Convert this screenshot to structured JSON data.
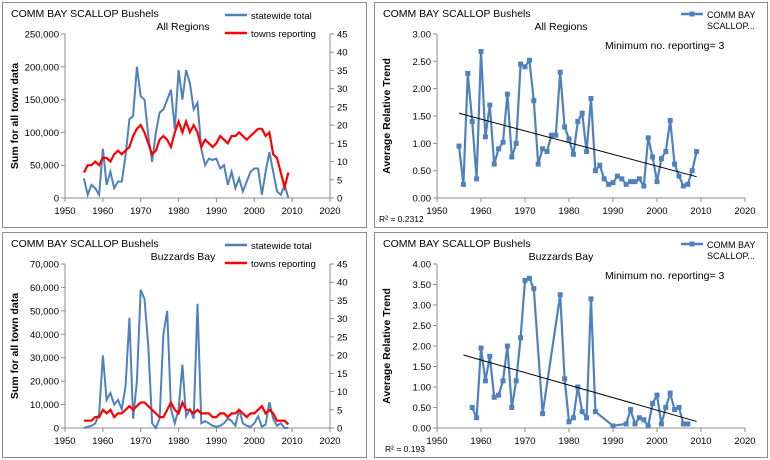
{
  "chart_data": [
    {
      "type": "line",
      "header": "COMM BAY SCALLOP Bushels",
      "title": "All Regions",
      "ylabel": "Sum for all town data",
      "xlim": [
        1950,
        2020
      ],
      "xticks": [
        "1950",
        "1960",
        "1970",
        "1980",
        "1990",
        "2000",
        "2010",
        "2020"
      ],
      "ylim": [
        0,
        250000
      ],
      "yticks": [
        "0",
        "50,000",
        "100,000",
        "150,000",
        "200,000",
        "250,000"
      ],
      "y2lim": [
        0,
        45
      ],
      "y2ticks": [
        "0",
        "5",
        "10",
        "15",
        "20",
        "25",
        "30",
        "35",
        "40",
        "45"
      ],
      "legend": [
        "statewide total",
        "towns reporting"
      ],
      "colors": {
        "total": "#4f81bd",
        "towns": "#ff0000"
      },
      "series": [
        {
          "name": "statewide total",
          "axis": "left",
          "x": [
            1955,
            1956,
            1957,
            1958,
            1959,
            1960,
            1961,
            1962,
            1963,
            1964,
            1965,
            1966,
            1967,
            1968,
            1969,
            1970,
            1971,
            1972,
            1973,
            1974,
            1975,
            1976,
            1977,
            1978,
            1979,
            1980,
            1981,
            1982,
            1983,
            1984,
            1985,
            1986,
            1987,
            1988,
            1989,
            1990,
            1991,
            1992,
            1993,
            1994,
            1995,
            1996,
            1997,
            1998,
            1999,
            2000,
            2001,
            2002,
            2003,
            2004,
            2005,
            2006,
            2007,
            2008,
            2009
          ],
          "values": [
            30000,
            5000,
            20000,
            15000,
            5000,
            75000,
            20000,
            40000,
            15000,
            25000,
            25000,
            65000,
            120000,
            125000,
            200000,
            155000,
            150000,
            95000,
            55000,
            100000,
            130000,
            135000,
            150000,
            165000,
            105000,
            195000,
            150000,
            195000,
            175000,
            135000,
            145000,
            75000,
            50000,
            60000,
            58000,
            60000,
            45000,
            50000,
            20000,
            40000,
            15000,
            30000,
            10000,
            25000,
            40000,
            45000,
            45000,
            5000,
            40000,
            70000,
            40000,
            10000,
            5000,
            20000,
            0
          ]
        },
        {
          "name": "towns reporting",
          "axis": "right",
          "x": [
            1955,
            1956,
            1957,
            1958,
            1959,
            1960,
            1961,
            1962,
            1963,
            1964,
            1965,
            1966,
            1967,
            1968,
            1969,
            1970,
            1971,
            1972,
            1973,
            1974,
            1975,
            1976,
            1977,
            1978,
            1979,
            1980,
            1981,
            1982,
            1983,
            1984,
            1985,
            1986,
            1987,
            1988,
            1989,
            1990,
            1991,
            1992,
            1993,
            1994,
            1995,
            1996,
            1997,
            1998,
            1999,
            2000,
            2001,
            2002,
            2003,
            2004,
            2005,
            2006,
            2007,
            2008,
            2009
          ],
          "values": [
            7,
            9,
            9,
            10,
            9,
            11,
            11,
            10,
            12,
            13,
            12,
            13,
            14,
            17,
            19,
            20,
            18,
            15,
            12,
            13,
            16,
            17,
            16,
            14,
            18,
            21,
            18,
            21,
            18,
            20,
            18,
            14,
            16,
            15,
            14,
            15,
            17,
            16,
            15,
            17,
            17,
            18,
            17,
            16,
            17,
            18,
            19,
            19,
            17,
            18,
            12,
            11,
            7,
            3,
            7
          ]
        }
      ]
    },
    {
      "type": "line",
      "header": "COMM BAY SCALLOP Bushels",
      "title": "All Regions",
      "ylabel": "Average Relative Trend",
      "annotation": "Minimum no. reporting= 3",
      "r2": "R² = 0.2312",
      "xlim": [
        1950,
        2020
      ],
      "xticks": [
        "1950",
        "1960",
        "1970",
        "1980",
        "1990",
        "2000",
        "2010",
        "2020"
      ],
      "ylim": [
        0,
        3
      ],
      "yticks": [
        "0.00",
        "0.50",
        "1.00",
        "1.50",
        "2.00",
        "2.50",
        "3.00"
      ],
      "legend": [
        "COMM BAY",
        "SCALLOP..."
      ],
      "colors": {
        "series": "#4f81bd",
        "trend": "#000000"
      },
      "trend": {
        "x": [
          1955,
          2009
        ],
        "values": [
          1.55,
          0.39
        ]
      },
      "series": [
        {
          "name": "COMM BAY SCALLOP...",
          "x": [
            1955,
            1956,
            1957,
            1958,
            1959,
            1960,
            1961,
            1962,
            1963,
            1964,
            1965,
            1966,
            1967,
            1968,
            1969,
            1970,
            1971,
            1972,
            1973,
            1974,
            1975,
            1976,
            1977,
            1978,
            1979,
            1980,
            1981,
            1982,
            1983,
            1984,
            1985,
            1986,
            1987,
            1988,
            1989,
            1990,
            1991,
            1992,
            1993,
            1994,
            1995,
            1996,
            1997,
            1998,
            1999,
            2000,
            2001,
            2002,
            2003,
            2004,
            2005,
            2006,
            2007,
            2008,
            2009
          ],
          "values": [
            0.95,
            0.25,
            2.28,
            1.4,
            0.35,
            2.68,
            1.12,
            1.7,
            0.62,
            0.9,
            1.02,
            1.9,
            0.75,
            1.0,
            2.45,
            2.4,
            2.52,
            1.78,
            0.62,
            0.9,
            0.85,
            1.15,
            1.15,
            2.3,
            1.3,
            1.08,
            0.8,
            1.4,
            1.55,
            0.85,
            1.82,
            0.5,
            0.6,
            0.35,
            0.25,
            0.28,
            0.4,
            0.35,
            0.25,
            0.3,
            0.3,
            0.35,
            0.22,
            1.1,
            0.75,
            0.3,
            0.72,
            0.85,
            1.42,
            0.62,
            0.4,
            0.22,
            0.25,
            0.5,
            0.85
          ]
        }
      ]
    },
    {
      "type": "line",
      "header": "COMM BAY SCALLOP Bushels",
      "title": "Buzzards Bay",
      "ylabel": "Sum for all town data",
      "xlim": [
        1950,
        2020
      ],
      "xticks": [
        "1950",
        "1960",
        "1970",
        "1980",
        "1990",
        "2000",
        "2010",
        "2020"
      ],
      "ylim": [
        0,
        70000
      ],
      "yticks": [
        "0",
        "10,000",
        "20,000",
        "30,000",
        "40,000",
        "50,000",
        "60,000",
        "70,000"
      ],
      "y2lim": [
        0,
        45
      ],
      "y2ticks": [
        "0",
        "5",
        "10",
        "15",
        "20",
        "25",
        "30",
        "35",
        "40",
        "45"
      ],
      "legend": [
        "statewide total",
        "towns reporting"
      ],
      "colors": {
        "total": "#4f81bd",
        "towns": "#ff0000"
      },
      "series": [
        {
          "name": "statewide total",
          "axis": "left",
          "x": [
            1955,
            1956,
            1957,
            1958,
            1959,
            1960,
            1961,
            1962,
            1963,
            1964,
            1965,
            1966,
            1967,
            1968,
            1969,
            1970,
            1971,
            1972,
            1973,
            1974,
            1975,
            1976,
            1977,
            1978,
            1979,
            1980,
            1981,
            1982,
            1983,
            1984,
            1985,
            1986,
            1987,
            1988,
            1989,
            1990,
            1991,
            1992,
            1993,
            1994,
            1995,
            1996,
            1997,
            1998,
            1999,
            2000,
            2001,
            2002,
            2003,
            2004,
            2005,
            2006,
            2007,
            2008,
            2009
          ],
          "values": [
            0,
            500,
            1000,
            2000,
            6000,
            31000,
            12000,
            15000,
            10000,
            12000,
            8000,
            18000,
            47000,
            4000,
            20000,
            59000,
            55000,
            35000,
            2000,
            0,
            4000,
            40000,
            50000,
            8000,
            2000,
            8000,
            27000,
            5000,
            8000,
            4000,
            53000,
            2000,
            3000,
            2000,
            1000,
            500,
            1000,
            2000,
            4000,
            3000,
            1000,
            8000,
            2000,
            1000,
            500,
            2000,
            5000,
            500,
            1500,
            11000,
            4000,
            1000,
            2000,
            0,
            0
          ]
        },
        {
          "name": "towns reporting",
          "axis": "right",
          "x": [
            1955,
            1956,
            1957,
            1958,
            1959,
            1960,
            1961,
            1962,
            1963,
            1964,
            1965,
            1966,
            1967,
            1968,
            1969,
            1970,
            1971,
            1972,
            1973,
            1974,
            1975,
            1976,
            1977,
            1978,
            1979,
            1980,
            1981,
            1982,
            1983,
            1984,
            1985,
            1986,
            1987,
            1988,
            1989,
            1990,
            1991,
            1992,
            1993,
            1994,
            1995,
            1996,
            1997,
            1998,
            1999,
            2000,
            2001,
            2002,
            2003,
            2004,
            2005,
            2006,
            2007,
            2008,
            2009
          ],
          "values": [
            2,
            2,
            2,
            3,
            3,
            5,
            4,
            5,
            3,
            4,
            4,
            5,
            6,
            5,
            6,
            7,
            7,
            6,
            5,
            4,
            3,
            3,
            5,
            7,
            5,
            4,
            7,
            5,
            5,
            4,
            5,
            4,
            4,
            4,
            3,
            3,
            4,
            4,
            3,
            4,
            4,
            5,
            4,
            3,
            4,
            4,
            5,
            6,
            4,
            5,
            4,
            2,
            2,
            2,
            1
          ]
        }
      ]
    },
    {
      "type": "line",
      "header": "COMM BAY SCALLOP Bushels",
      "title": "Buzzards Bay",
      "ylabel": "Average Relative Trend",
      "annotation": "Minimum no. reporting= 3",
      "r2": "R² = 0.193",
      "xlim": [
        1950,
        2020
      ],
      "xticks": [
        "1950",
        "1960",
        "1970",
        "1980",
        "1990",
        "2000",
        "2010",
        "2020"
      ],
      "ylim": [
        0,
        4
      ],
      "yticks": [
        "0.00",
        "0.50",
        "1.00",
        "1.50",
        "2.00",
        "2.50",
        "3.00",
        "3.50",
        "4.00"
      ],
      "legend": [
        "COMM BAY",
        "SCALLOP..."
      ],
      "colors": {
        "series": "#4f81bd",
        "trend": "#000000"
      },
      "trend": {
        "x": [
          1956,
          2009
        ],
        "values": [
          1.78,
          0.16
        ]
      },
      "series": [
        {
          "name": "COMM BAY SCALLOP...",
          "x": [
            1958,
            1959,
            1960,
            1961,
            1962,
            1963,
            1964,
            1965,
            1966,
            1967,
            1968,
            1969,
            1970,
            1971,
            1972,
            1974,
            1978,
            1979,
            1980,
            1981,
            1982,
            1983,
            1984,
            1985,
            1986,
            1990,
            1993,
            1994,
            1995,
            1996,
            1997,
            1998,
            1999,
            2000,
            2001,
            2002,
            2003,
            2004,
            2005,
            2006,
            2007
          ],
          "values": [
            0.5,
            0.25,
            1.95,
            1.15,
            1.75,
            0.75,
            0.8,
            1.15,
            2.0,
            0.5,
            1.15,
            2.2,
            3.6,
            3.65,
            3.4,
            0.35,
            3.25,
            1.2,
            0.15,
            0.25,
            1.0,
            0.4,
            0.25,
            3.15,
            0.4,
            0.05,
            0.1,
            0.45,
            0.1,
            0.25,
            0.2,
            0.05,
            0.6,
            0.8,
            0.1,
            0.5,
            0.85,
            0.45,
            0.5,
            0.1,
            0.1
          ]
        }
      ]
    }
  ]
}
